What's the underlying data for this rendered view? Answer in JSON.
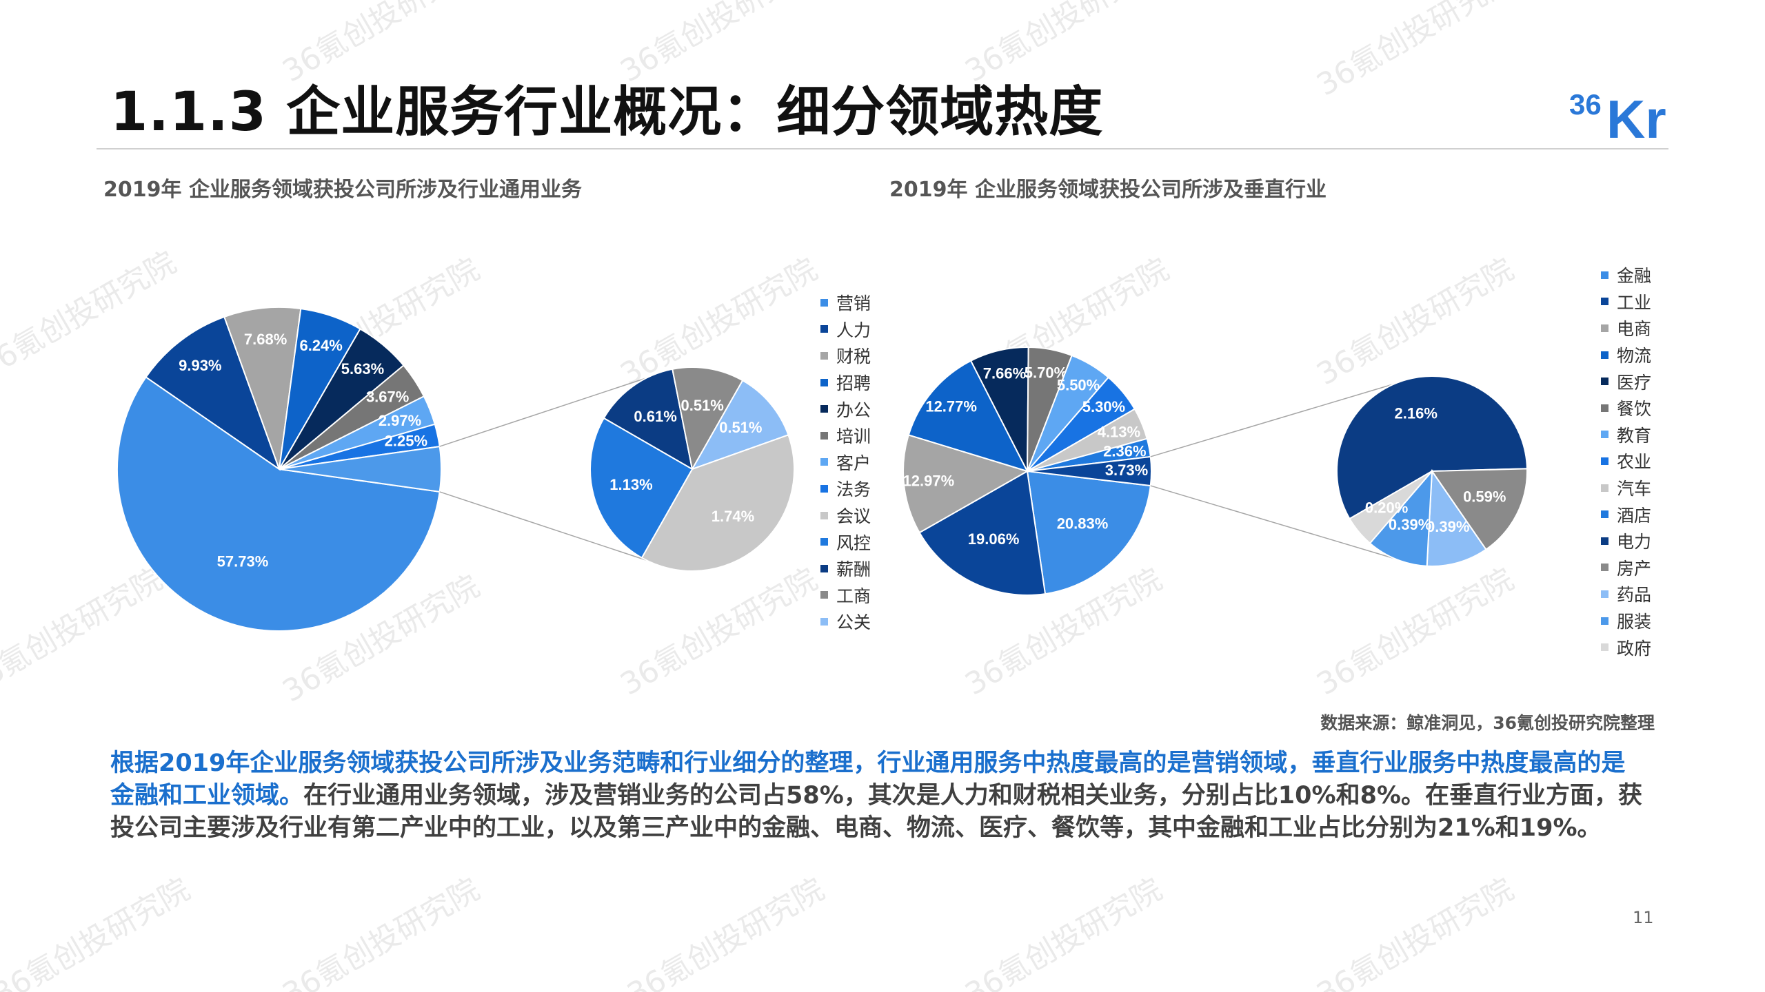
{
  "title": "1.1.3 企业服务行业概况：细分领域热度",
  "logo_text": "36Kr",
  "watermark": "36氪创投研究院",
  "colors": {
    "accent": "#1a6fcd",
    "palette": [
      "#3b8de6",
      "#0a4599",
      "#a5a5a5",
      "#0d63c9",
      "#062a5c",
      "#767676",
      "#5ea7f3",
      "#1873e3",
      "#c8c8c8",
      "#1f79de",
      "#0b3c84",
      "#8a8a8a",
      "#8cbdf6",
      "#4c99ea",
      "#d9d9d9"
    ]
  },
  "chart_data": [
    {
      "type": "pie",
      "title": "2019年 企业服务领域获投公司所涉及行业通用业务",
      "legend_position": "right",
      "categories": [
        "营销",
        "人力",
        "财税",
        "招聘",
        "办公",
        "培训",
        "客户",
        "法务",
        "会议",
        "风控",
        "薪酬",
        "工商",
        "公关"
      ],
      "values": [
        57.73,
        9.93,
        7.68,
        6.24,
        5.63,
        3.67,
        2.97,
        2.25,
        1.74,
        1.13,
        0.61,
        0.51,
        0.51
      ],
      "labels": [
        "57.73%",
        "9.93%",
        "7.68%",
        "6.24%",
        "5.63%",
        "3.67%",
        "2.97%",
        "2.25%",
        "1.74%",
        "1.13%",
        "0.61%",
        "0.51%",
        "0.51%"
      ],
      "secondary_pie_categories": [
        "会议",
        "风控",
        "薪酬",
        "工商",
        "公关"
      ]
    },
    {
      "type": "pie",
      "title": "2019年 企业服务领域获投公司所涉及垂直行业",
      "legend_position": "right",
      "categories": [
        "金融",
        "工业",
        "电商",
        "物流",
        "医疗",
        "餐饮",
        "教育",
        "农业",
        "汽车",
        "酒店",
        "电力",
        "房产",
        "药品",
        "服装",
        "政府"
      ],
      "values": [
        20.83,
        19.06,
        12.97,
        12.77,
        7.66,
        5.7,
        5.5,
        5.3,
        4.13,
        2.36,
        2.16,
        0.59,
        0.39,
        0.39,
        0.2
      ],
      "labels": [
        "20.83%",
        "19.06%",
        "12.97%",
        "12.77%",
        "7.66%",
        "5.70%",
        "5.50%",
        "5.30%",
        "4.13%",
        "2.36%",
        "2.16%",
        "0.59%",
        "0.39%",
        "0.39%",
        "0.20%"
      ],
      "tail_value_label": "3.73%",
      "secondary_pie_categories": [
        "电力",
        "房产",
        "药品",
        "服装",
        "政府"
      ]
    }
  ],
  "source": "数据来源：鲸准洞见，36氪创投研究院整理",
  "summary": {
    "highlight": "根据2019年企业服务领域获投公司所涉及业务范畴和行业细分的整理，行业通用服务中热度最高的是营销领域，垂直行业服务中热度最高的是金融和工业领域。",
    "body": "在行业通用业务领域，涉及营销业务的公司占58%，其次是人力和财税相关业务，分别占比10%和8%。在垂直行业方面，获投公司主要涉及行业有第二产业中的工业，以及第三产业中的金融、电商、物流、医疗、餐饮等，其中金融和工业占比分别为21%和19%。"
  },
  "page_number": "11"
}
